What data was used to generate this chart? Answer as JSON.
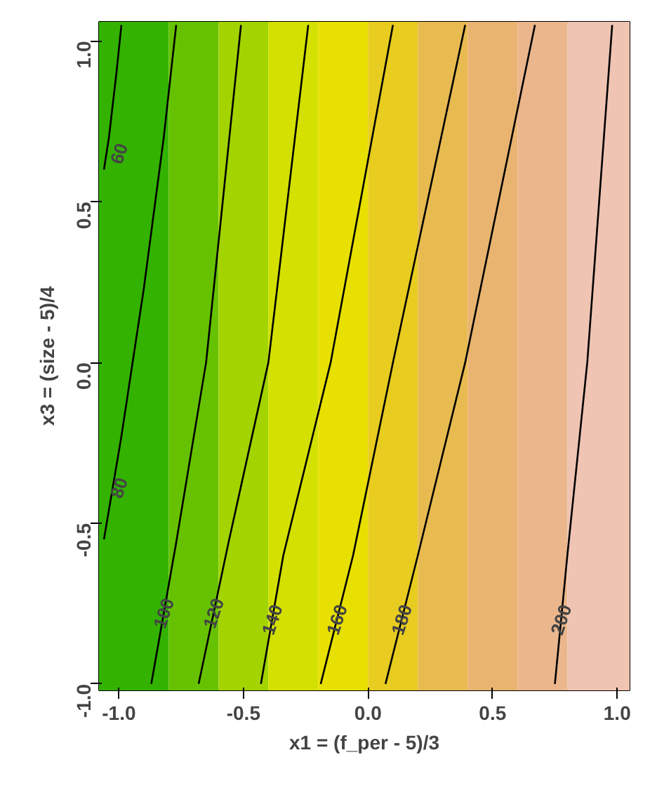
{
  "chart_data": {
    "type": "line",
    "xlabel": "x1 = (f_per - 5)/3",
    "ylabel": "x3 = (size - 5)/4",
    "xlim": [
      -1.08,
      1.05
    ],
    "ylim": [
      -1.02,
      1.06
    ],
    "xticks": [
      {
        "value": -1,
        "label": "-1.0"
      },
      {
        "value": -0.5,
        "label": "-0.5"
      },
      {
        "value": 0,
        "label": "0.0"
      },
      {
        "value": 0.5,
        "label": "0.5"
      },
      {
        "value": 1,
        "label": "1.0"
      }
    ],
    "yticks": [
      {
        "value": -1,
        "label": "-1.0"
      },
      {
        "value": -0.5,
        "label": "-0.5"
      },
      {
        "value": 0,
        "label": "0.0"
      },
      {
        "value": 0.5,
        "label": "0.5"
      },
      {
        "value": 1,
        "label": "1.0"
      }
    ],
    "grid": false,
    "line_style": "solid",
    "bands": [
      {
        "axis": "x",
        "from": -1.08,
        "to": -0.8,
        "color": "#33b300"
      },
      {
        "axis": "x",
        "from": -0.8,
        "to": -0.6,
        "color": "#66c200"
      },
      {
        "axis": "x",
        "from": -0.6,
        "to": -0.4,
        "color": "#a3d400"
      },
      {
        "axis": "x",
        "from": -0.4,
        "to": -0.2,
        "color": "#d4e000"
      },
      {
        "axis": "x",
        "from": -0.2,
        "to": 0.0,
        "color": "#e8e000"
      },
      {
        "axis": "x",
        "from": 0.0,
        "to": 0.2,
        "color": "#e8cc20"
      },
      {
        "axis": "x",
        "from": 0.2,
        "to": 0.4,
        "color": "#e8bb50"
      },
      {
        "axis": "x",
        "from": 0.4,
        "to": 0.6,
        "color": "#e8b470"
      },
      {
        "axis": "x",
        "from": 0.6,
        "to": 0.8,
        "color": "#ebb68c"
      },
      {
        "axis": "x",
        "from": 0.8,
        "to": 1.05,
        "color": "#efc4b2"
      }
    ],
    "series": [
      {
        "name": "60",
        "color": "#000000",
        "x": [
          -0.99,
          -1.01,
          -1.04,
          -1.06
        ],
        "values": [
          1.05,
          0.9,
          0.7,
          0.6
        ]
      },
      {
        "name": "80",
        "color": "#000000",
        "x": [
          -0.77,
          -0.82,
          -0.9,
          -0.99,
          -1.06
        ],
        "values": [
          1.05,
          0.7,
          0.23,
          -0.23,
          -0.55
        ]
      },
      {
        "name": "100",
        "color": "#000000",
        "x": [
          -0.51,
          -0.65,
          -0.77,
          -0.87
        ],
        "values": [
          1.05,
          0.0,
          -0.56,
          -1.0
        ]
      },
      {
        "name": "120",
        "color": "#000000",
        "x": [
          -0.24,
          -0.4,
          -0.56,
          -0.68
        ],
        "values": [
          1.05,
          0.0,
          -0.56,
          -1.0
        ]
      },
      {
        "name": "140",
        "color": "#000000",
        "x": [
          0.1,
          -0.15,
          -0.34,
          -0.43
        ],
        "values": [
          1.05,
          0.0,
          -0.6,
          -1.0
        ]
      },
      {
        "name": "160",
        "color": "#000000",
        "x": [
          0.39,
          0.1,
          -0.06,
          -0.19
        ],
        "values": [
          1.05,
          0.0,
          -0.6,
          -1.0
        ]
      },
      {
        "name": "180",
        "color": "#000000",
        "x": [
          0.67,
          0.39,
          0.2,
          0.07
        ],
        "values": [
          1.05,
          0.0,
          -0.6,
          -1.0
        ]
      },
      {
        "name": "200",
        "color": "#000000",
        "x": [
          0.98,
          0.88,
          0.8,
          0.75
        ],
        "values": [
          1.05,
          0.0,
          -0.6,
          -1.0
        ]
      }
    ]
  }
}
